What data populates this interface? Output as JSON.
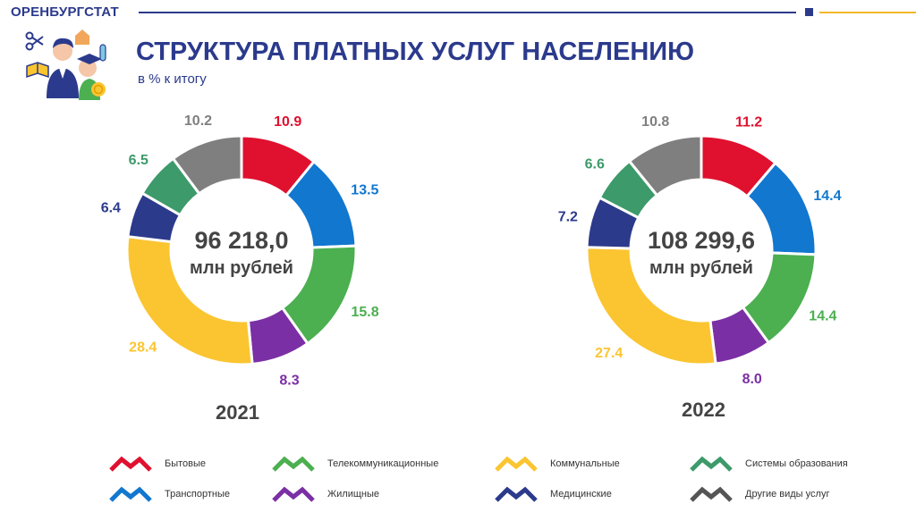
{
  "header": {
    "org": "ОРЕНБУРГСТАТ",
    "title": "СТРУКТУРА ПЛАТНЫХ УСЛУГ НАСЕЛЕНИЮ",
    "subtitle": "в % к итогу"
  },
  "colors": {
    "brand": "#2b3a8c",
    "accent": "#f2b829"
  },
  "chart_data": [
    {
      "type": "pie",
      "year": "2021",
      "center_value": "96 218,0",
      "center_unit": "млн рублей",
      "categories": [
        "Бытовые",
        "Транспортные",
        "Телекоммуникационные",
        "Жилищные",
        "Коммунальные",
        "Медицинские",
        "Системы образования",
        "Другие виды услуг"
      ],
      "values": [
        10.9,
        13.5,
        15.8,
        8.3,
        28.4,
        6.4,
        6.5,
        10.2
      ],
      "labels": [
        "10.9",
        "13.5",
        "15.8",
        "8.3",
        "28.4",
        "6.4",
        "6.5",
        "10.2"
      ],
      "colors": [
        "#e0102f",
        "#1177cf",
        "#4caf50",
        "#7b2fa5",
        "#fbc531",
        "#2c3a8c",
        "#3d9a6a",
        "#7f7f7f"
      ]
    },
    {
      "type": "pie",
      "year": "2022",
      "center_value": "108 299,6",
      "center_unit": "млн рублей",
      "categories": [
        "Бытовые",
        "Транспортные",
        "Телекоммуникационные",
        "Жилищные",
        "Коммунальные",
        "Медицинские",
        "Системы образования",
        "Другие виды услуг"
      ],
      "values": [
        11.2,
        14.4,
        14.4,
        8.0,
        27.4,
        7.2,
        6.6,
        10.8
      ],
      "labels": [
        "11.2",
        "14.4",
        "14.4",
        "8.0",
        "27.4",
        "7.2",
        "6.6",
        "10.8"
      ],
      "colors": [
        "#e0102f",
        "#1177cf",
        "#4caf50",
        "#7b2fa5",
        "#fbc531",
        "#2c3a8c",
        "#3d9a6a",
        "#7f7f7f"
      ]
    }
  ],
  "legend": [
    {
      "label": "Бытовые",
      "color": "#e0102f"
    },
    {
      "label": "Транспортные",
      "color": "#1177cf"
    },
    {
      "label": "Телекоммуникационные",
      "color": "#4caf50"
    },
    {
      "label": "Жилищные",
      "color": "#7b2fa5"
    },
    {
      "label": "Коммунальные",
      "color": "#fbc531"
    },
    {
      "label": "Медицинские",
      "color": "#2c3a8c"
    },
    {
      "label": "Системы образования",
      "color": "#3d9a6a"
    },
    {
      "label": "Другие виды услуг",
      "color": "#555555"
    }
  ]
}
